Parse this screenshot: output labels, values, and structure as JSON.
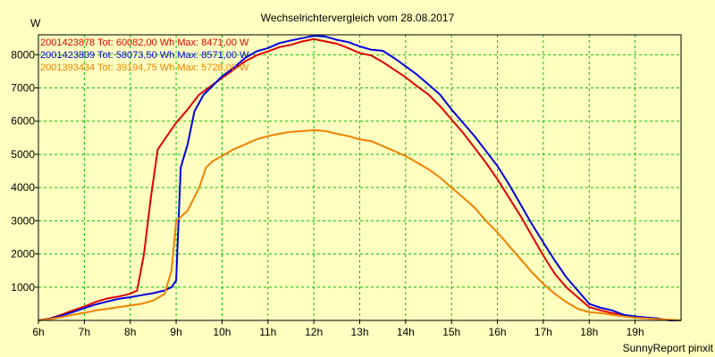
{
  "chart_data": {
    "type": "line",
    "title": "Wechselrichtervergleich vom 28.08.2017",
    "ylabel": "W",
    "xlabel": "",
    "footer": "SunnyReport pinxit",
    "xlim": [
      6,
      20
    ],
    "ylim": [
      0,
      8600
    ],
    "x_ticks": [
      6,
      7,
      8,
      9,
      10,
      11,
      12,
      13,
      14,
      15,
      16,
      17,
      18,
      19
    ],
    "x_tick_labels": [
      "6h",
      "7h",
      "8h",
      "9h",
      "10h",
      "11h",
      "12h",
      "13h",
      "14h",
      "15h",
      "16h",
      "17h",
      "18h",
      "19h"
    ],
    "y_ticks": [
      1000,
      2000,
      3000,
      4000,
      5000,
      6000,
      7000,
      8000
    ],
    "y_tick_labels": [
      "1000",
      "2000",
      "3000",
      "4000",
      "5000",
      "6000",
      "7000",
      "8000"
    ],
    "grid": true,
    "legend_position": "top-left",
    "colors": {
      "background": "#ffffc0",
      "grid": "#00c000"
    },
    "series": [
      {
        "name": "2001423878",
        "legend_text": "2001423878 Tot: 60082,00 Wh Max: 8471,00 W",
        "color": "#e00000",
        "x": [
          6.0,
          6.25,
          6.5,
          6.75,
          7.0,
          7.25,
          7.5,
          7.75,
          8.0,
          8.15,
          8.3,
          8.45,
          8.6,
          8.75,
          9.0,
          9.25,
          9.5,
          9.75,
          10.0,
          10.25,
          10.5,
          10.75,
          11.0,
          11.25,
          11.5,
          11.75,
          12.0,
          12.25,
          12.5,
          12.75,
          13.0,
          13.25,
          13.5,
          13.75,
          14.0,
          14.25,
          14.5,
          14.75,
          15.0,
          15.25,
          15.5,
          15.75,
          16.0,
          16.25,
          16.5,
          16.75,
          17.0,
          17.25,
          17.5,
          17.75,
          18.0,
          18.25,
          18.5,
          18.75,
          19.0,
          19.25,
          19.5,
          19.75,
          20.0
        ],
        "values": [
          0,
          60,
          170,
          300,
          420,
          560,
          660,
          720,
          800,
          900,
          2000,
          3700,
          5150,
          5450,
          5950,
          6350,
          6800,
          7050,
          7300,
          7550,
          7800,
          7980,
          8100,
          8230,
          8300,
          8400,
          8470,
          8400,
          8330,
          8200,
          8050,
          7980,
          7780,
          7550,
          7320,
          7050,
          6800,
          6450,
          6050,
          5650,
          5200,
          4750,
          4250,
          3700,
          3150,
          2550,
          1950,
          1400,
          1000,
          700,
          400,
          300,
          220,
          150,
          100,
          70,
          50,
          0,
          0
        ]
      },
      {
        "name": "2001423809",
        "legend_text": "2001423809 Tot: 58073,50 Wh Max: 8571,00 W",
        "color": "#0000e0",
        "x": [
          6.0,
          6.25,
          6.5,
          6.75,
          7.0,
          7.25,
          7.5,
          7.75,
          8.0,
          8.25,
          8.5,
          8.75,
          8.9,
          9.0,
          9.1,
          9.25,
          9.4,
          9.6,
          9.75,
          10.0,
          10.25,
          10.5,
          10.75,
          11.0,
          11.25,
          11.5,
          11.75,
          12.0,
          12.25,
          12.5,
          12.75,
          13.0,
          13.25,
          13.5,
          13.75,
          14.0,
          14.25,
          14.5,
          14.75,
          15.0,
          15.25,
          15.5,
          15.75,
          16.0,
          16.25,
          16.5,
          16.75,
          17.0,
          17.25,
          17.5,
          17.75,
          18.0,
          18.25,
          18.5,
          18.75,
          19.0,
          19.25,
          19.5,
          19.75,
          20.0
        ],
        "values": [
          0,
          50,
          140,
          250,
          370,
          480,
          570,
          650,
          700,
          760,
          820,
          900,
          1000,
          1200,
          4600,
          5300,
          6300,
          6800,
          7000,
          7350,
          7600,
          7900,
          8100,
          8200,
          8350,
          8430,
          8500,
          8571,
          8550,
          8450,
          8380,
          8250,
          8150,
          8120,
          7900,
          7650,
          7400,
          7100,
          6800,
          6350,
          5950,
          5550,
          5100,
          4650,
          4100,
          3500,
          2900,
          2350,
          1800,
          1300,
          900,
          500,
          380,
          300,
          170,
          120,
          90,
          60,
          0,
          0
        ]
      },
      {
        "name": "2001393434",
        "legend_text": "2001393434 Tot: 39194,75 Wh Max: 5728,00 W",
        "color": "#f08000",
        "x": [
          6.0,
          6.25,
          6.5,
          6.75,
          7.0,
          7.25,
          7.5,
          7.75,
          8.0,
          8.25,
          8.5,
          8.75,
          8.9,
          9.0,
          9.25,
          9.5,
          9.65,
          9.8,
          10.0,
          10.25,
          10.5,
          10.75,
          11.0,
          11.25,
          11.5,
          11.75,
          12.0,
          12.25,
          12.5,
          12.75,
          13.0,
          13.25,
          13.5,
          13.75,
          14.0,
          14.25,
          14.5,
          14.75,
          15.0,
          15.25,
          15.5,
          15.75,
          16.0,
          16.25,
          16.5,
          16.75,
          17.0,
          17.25,
          17.5,
          17.75,
          18.0,
          18.25,
          18.5,
          18.75,
          19.0,
          19.25,
          19.5,
          19.75,
          20.0
        ],
        "values": [
          0,
          40,
          100,
          170,
          230,
          300,
          350,
          400,
          450,
          500,
          600,
          800,
          1500,
          3000,
          3300,
          4000,
          4600,
          4800,
          4950,
          5150,
          5300,
          5450,
          5550,
          5620,
          5680,
          5700,
          5728,
          5700,
          5620,
          5550,
          5450,
          5400,
          5250,
          5100,
          4950,
          4750,
          4550,
          4300,
          4000,
          3700,
          3400,
          3000,
          2650,
          2250,
          1850,
          1450,
          1100,
          800,
          550,
          350,
          250,
          220,
          170,
          120,
          80,
          60,
          40,
          20,
          0
        ]
      }
    ]
  }
}
